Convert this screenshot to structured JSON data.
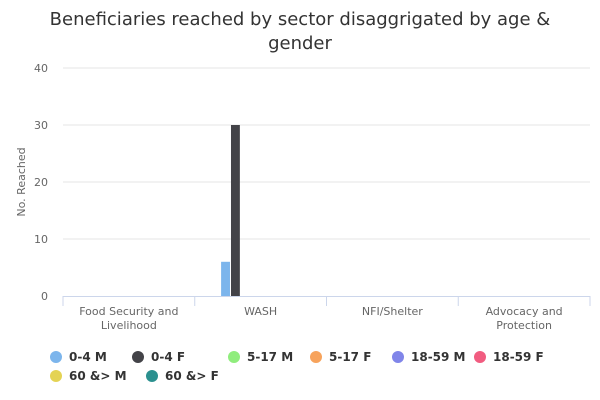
{
  "chart_data": {
    "type": "bar",
    "title": "Beneficiaries reached by sector disaggrigated by age & gender",
    "xlabel": "",
    "ylabel": "No. Reached",
    "ylim": [
      0,
      40
    ],
    "yticks": [
      "0",
      "10",
      "20",
      "30",
      "40"
    ],
    "grid": true,
    "legend_position": "bottom-left",
    "categories": [
      "Food Security and Livelihood",
      "WASH",
      "NFI/Shelter",
      "Advocacy and Protection"
    ],
    "series": [
      {
        "name": "0-4 M",
        "color": "#7cb5ec",
        "values": [
          0,
          6,
          0,
          0
        ]
      },
      {
        "name": "0-4 F",
        "color": "#434348",
        "values": [
          0,
          30,
          0,
          0
        ]
      },
      {
        "name": "5-17 M",
        "color": "#90ed7d",
        "values": [
          0,
          0,
          0,
          0
        ]
      },
      {
        "name": "5-17 F",
        "color": "#f7a35c",
        "values": [
          0,
          0,
          0,
          0
        ]
      },
      {
        "name": "18-59 M",
        "color": "#8085e9",
        "values": [
          0,
          0,
          0,
          0
        ]
      },
      {
        "name": "18-59 F",
        "color": "#f15c80",
        "values": [
          0,
          0,
          0,
          0
        ]
      },
      {
        "name": "60 &> M",
        "color": "#e4d354",
        "values": [
          0,
          0,
          0,
          0
        ]
      },
      {
        "name": "60 &> F",
        "color": "#2b908f",
        "values": [
          0,
          0,
          0,
          0
        ]
      }
    ]
  }
}
